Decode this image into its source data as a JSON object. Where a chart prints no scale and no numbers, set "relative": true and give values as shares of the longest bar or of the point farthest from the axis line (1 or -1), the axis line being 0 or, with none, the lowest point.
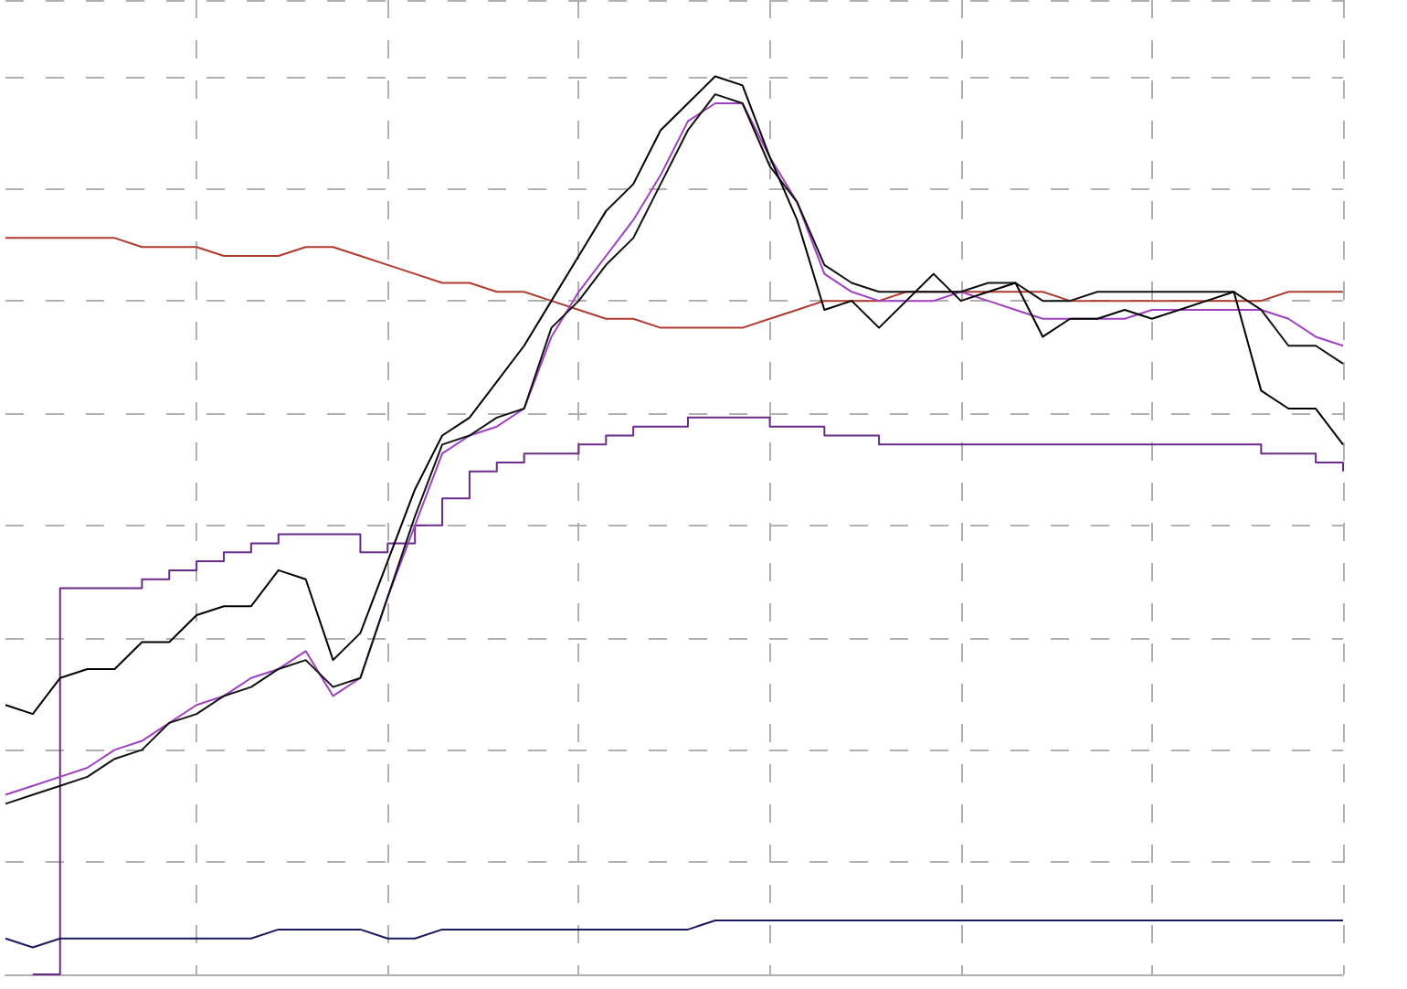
{
  "chart_data": {
    "type": "line",
    "relative": true,
    "grid": true,
    "marker": "none",
    "line_style": "solid",
    "categories": [
      null,
      null,
      null,
      null,
      null,
      null,
      null,
      null,
      null,
      null,
      null,
      null,
      null,
      null,
      null,
      null,
      null,
      null,
      null,
      null,
      null,
      null,
      null,
      null,
      null,
      null,
      null,
      null,
      null,
      null,
      null,
      null,
      null,
      null,
      null,
      null,
      null,
      null,
      null,
      null,
      null,
      null,
      null,
      null,
      null,
      null,
      null,
      null,
      null,
      null
    ],
    "series": [
      {
        "color": "#b03a2e",
        "values": [
          0.82,
          0.82,
          0.82,
          0.82,
          0.82,
          0.81,
          0.81,
          0.81,
          0.8,
          0.8,
          0.8,
          0.81,
          0.81,
          0.8,
          0.79,
          0.78,
          0.77,
          0.77,
          0.76,
          0.76,
          0.75,
          0.74,
          0.73,
          0.73,
          0.72,
          0.72,
          0.72,
          0.72,
          0.73,
          0.74,
          0.75,
          0.75,
          0.75,
          0.76,
          0.76,
          0.76,
          0.76,
          0.76,
          0.76,
          0.75,
          0.75,
          0.75,
          0.75,
          0.75,
          0.75,
          0.75,
          0.75,
          0.76,
          0.76,
          0.76
        ]
      },
      {
        "type": "step",
        "color": "#6a2a8a",
        "values": [
          null,
          0,
          0.43,
          0.43,
          0.43,
          0.44,
          0.45,
          0.46,
          0.47,
          0.48,
          0.49,
          0.49,
          0.49,
          0.47,
          0.48,
          0.5,
          0.53,
          0.56,
          0.57,
          0.58,
          0.58,
          0.59,
          0.6,
          0.61,
          0.61,
          0.62,
          0.62,
          0.62,
          0.61,
          0.61,
          0.6,
          0.6,
          0.59,
          0.59,
          0.59,
          0.59,
          0.59,
          0.59,
          0.59,
          0.59,
          0.59,
          0.59,
          0.59,
          0.59,
          0.59,
          0.59,
          0.58,
          0.58,
          0.57,
          0.56
        ]
      },
      {
        "color": "#1a1a5e",
        "values": [
          0.04,
          0.03,
          0.04,
          0.04,
          0.04,
          0.04,
          0.04,
          0.04,
          0.04,
          0.04,
          0.05,
          0.05,
          0.05,
          0.05,
          0.04,
          0.04,
          0.05,
          0.05,
          0.05,
          0.05,
          0.05,
          0.05,
          0.05,
          0.05,
          0.05,
          0.05,
          0.06,
          0.06,
          0.06,
          0.06,
          0.06,
          0.06,
          0.06,
          0.06,
          0.06,
          0.06,
          0.06,
          0.06,
          0.06,
          0.06,
          0.06,
          0.06,
          0.06,
          0.06,
          0.06,
          0.06,
          0.06,
          0.06,
          0.06,
          0.06
        ]
      },
      {
        "color": "#a040c0",
        "values": [
          0.2,
          0.21,
          0.22,
          0.23,
          0.25,
          0.26,
          0.28,
          0.3,
          0.31,
          0.33,
          0.34,
          0.36,
          0.31,
          0.33,
          0.42,
          0.5,
          0.58,
          0.6,
          0.61,
          0.63,
          0.71,
          0.76,
          0.8,
          0.84,
          0.89,
          0.95,
          0.97,
          0.97,
          0.91,
          0.86,
          0.78,
          0.76,
          0.75,
          0.75,
          0.75,
          0.76,
          0.75,
          0.74,
          0.73,
          0.73,
          0.73,
          0.73,
          0.74,
          0.74,
          0.74,
          0.74,
          0.74,
          0.73,
          0.71,
          0.7
        ]
      },
      {
        "color": "#111111",
        "values": [
          0.19,
          0.2,
          0.21,
          0.22,
          0.24,
          0.25,
          0.28,
          0.29,
          0.31,
          0.32,
          0.34,
          0.35,
          0.32,
          0.33,
          0.42,
          0.51,
          0.59,
          0.6,
          0.62,
          0.63,
          0.72,
          0.75,
          0.79,
          0.82,
          0.88,
          0.94,
          0.98,
          0.97,
          0.9,
          0.86,
          0.79,
          0.77,
          0.76,
          0.76,
          0.76,
          0.76,
          0.77,
          0.77,
          0.75,
          0.75,
          0.76,
          0.76,
          0.76,
          0.76,
          0.76,
          0.76,
          0.74,
          0.7,
          0.7,
          0.68
        ]
      },
      {
        "color": "#000000",
        "values": [
          0.3,
          0.29,
          0.33,
          0.34,
          0.34,
          0.37,
          0.37,
          0.4,
          0.41,
          0.41,
          0.45,
          0.44,
          0.35,
          0.38,
          0.46,
          0.54,
          0.6,
          0.62,
          0.66,
          0.7,
          0.75,
          0.8,
          0.85,
          0.88,
          0.94,
          0.97,
          1.0,
          0.99,
          0.91,
          0.84,
          0.74,
          0.75,
          0.72,
          0.75,
          0.78,
          0.75,
          0.76,
          0.77,
          0.71,
          0.73,
          0.73,
          0.74,
          0.73,
          0.74,
          0.75,
          0.76,
          0.65,
          0.63,
          0.63,
          0.59
        ]
      }
    ]
  }
}
